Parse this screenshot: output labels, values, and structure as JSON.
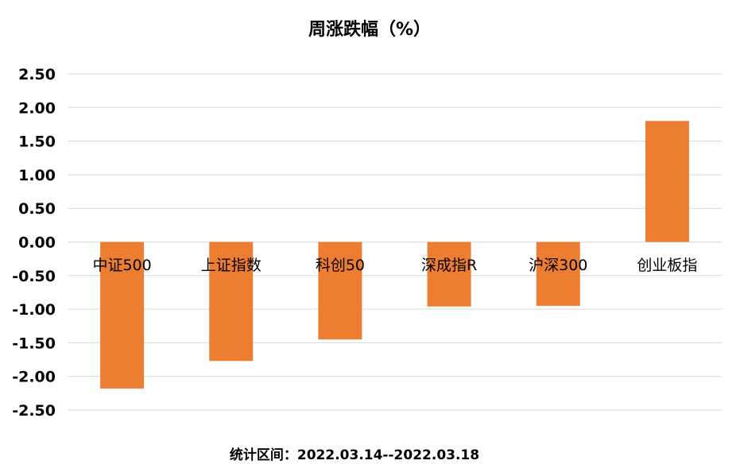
{
  "chart_data": {
    "type": "bar",
    "title": "周涨跌幅（%）",
    "categories": [
      "中证500",
      "上证指数",
      "科创50",
      "深成指R",
      "沪深300",
      "创业板指"
    ],
    "values": [
      -2.18,
      -1.77,
      -1.45,
      -0.96,
      -0.95,
      1.8
    ],
    "ylim": [
      -2.5,
      2.5
    ],
    "yticks": [
      "2.50",
      "2.00",
      "1.50",
      "1.00",
      "0.50",
      "0.00",
      "-0.50",
      "-1.00",
      "-1.50",
      "-2.00",
      "-2.50"
    ],
    "grid": true,
    "bar_color": "#ED7D31",
    "footnote": "统计区间：2022.03.14--2022.03.18"
  }
}
